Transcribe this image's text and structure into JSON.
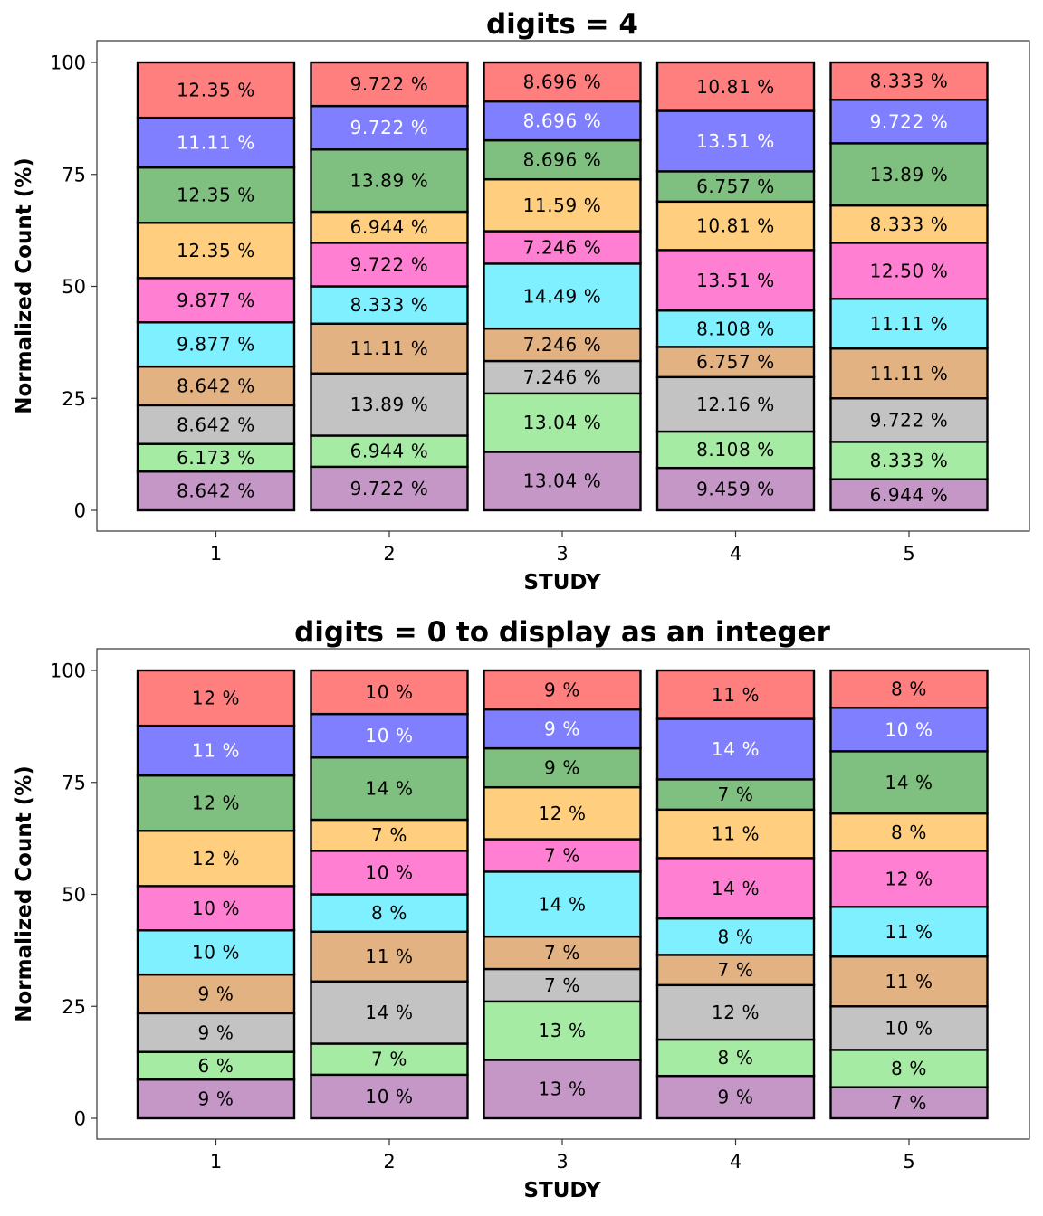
{
  "chart_data": [
    {
      "type": "bar",
      "stacked": true,
      "title": "digits = 4",
      "xlabel": "STUDY",
      "ylabel": "Normalized Count (%)",
      "categories": [
        "1",
        "2",
        "3",
        "4",
        "5"
      ],
      "ylim": [
        0,
        100
      ],
      "yticks": [
        "0",
        "25",
        "50",
        "75",
        "100"
      ],
      "grid": false,
      "series": [
        {
          "color": "#c497c6",
          "values": [
            8.642,
            9.722,
            13.04,
            9.459,
            6.944
          ],
          "labels": [
            "8.642 %",
            "9.722 %",
            "13.04 %",
            "9.459 %",
            "6.944 %"
          ]
        },
        {
          "color": "#a6eba4",
          "values": [
            6.173,
            6.944,
            13.04,
            8.108,
            8.333
          ],
          "labels": [
            "6.173 %",
            "6.944 %",
            "13.04 %",
            "8.108 %",
            "8.333 %"
          ]
        },
        {
          "color": "#c3c3c3",
          "values": [
            8.642,
            13.89,
            7.246,
            12.16,
            9.722
          ],
          "labels": [
            "8.642 %",
            "13.89 %",
            "7.246 %",
            "12.16 %",
            "9.722 %"
          ]
        },
        {
          "color": "#e3b283",
          "values": [
            8.642,
            11.11,
            7.246,
            6.757,
            11.11
          ],
          "labels": [
            "8.642 %",
            "11.11 %",
            "7.246 %",
            "6.757 %",
            "11.11 %"
          ]
        },
        {
          "color": "#7ff0ff",
          "values": [
            9.877,
            8.333,
            14.49,
            8.108,
            11.11
          ],
          "labels": [
            "9.877 %",
            "8.333 %",
            "14.49 %",
            "8.108 %",
            "11.11 %"
          ]
        },
        {
          "color": "#ff80d2",
          "values": [
            9.877,
            9.722,
            7.246,
            13.51,
            12.5
          ],
          "labels": [
            "9.877 %",
            "9.722 %",
            "7.246 %",
            "13.51 %",
            "12.50 %"
          ]
        },
        {
          "color": "#ffcf7f",
          "values": [
            12.35,
            6.944,
            11.59,
            10.81,
            8.333
          ],
          "labels": [
            "12.35 %",
            "6.944 %",
            "11.59 %",
            "10.81 %",
            "8.333 %"
          ]
        },
        {
          "color": "#7fbf7f",
          "values": [
            12.35,
            13.89,
            8.696,
            6.757,
            13.89
          ],
          "labels": [
            "12.35 %",
            "13.89 %",
            "8.696 %",
            "6.757 %",
            "13.89 %"
          ]
        },
        {
          "color": "#7f7fff",
          "label_color": "#ffffff",
          "values": [
            11.11,
            9.722,
            8.696,
            13.51,
            9.722
          ],
          "labels": [
            "11.11 %",
            "9.722 %",
            "8.696 %",
            "13.51 %",
            "9.722 %"
          ]
        },
        {
          "color": "#ff7f7f",
          "values": [
            12.35,
            9.722,
            8.696,
            10.81,
            8.333
          ],
          "labels": [
            "12.35 %",
            "9.722 %",
            "8.696 %",
            "10.81 %",
            "8.333 %"
          ]
        }
      ]
    },
    {
      "type": "bar",
      "stacked": true,
      "title": "digits = 0 to display as an integer",
      "xlabel": "STUDY",
      "ylabel": "Normalized Count (%)",
      "categories": [
        "1",
        "2",
        "3",
        "4",
        "5"
      ],
      "ylim": [
        0,
        100
      ],
      "yticks": [
        "0",
        "25",
        "50",
        "75",
        "100"
      ],
      "grid": false,
      "series": [
        {
          "color": "#c497c6",
          "values": [
            8.642,
            9.722,
            13.04,
            9.459,
            6.944
          ],
          "labels": [
            "9 %",
            "10 %",
            "13 %",
            "9 %",
            "7 %"
          ]
        },
        {
          "color": "#a6eba4",
          "values": [
            6.173,
            6.944,
            13.04,
            8.108,
            8.333
          ],
          "labels": [
            "6 %",
            "7 %",
            "13 %",
            "8 %",
            "8 %"
          ]
        },
        {
          "color": "#c3c3c3",
          "values": [
            8.642,
            13.89,
            7.246,
            12.16,
            9.722
          ],
          "labels": [
            "9 %",
            "14 %",
            "7 %",
            "12 %",
            "10 %"
          ]
        },
        {
          "color": "#e3b283",
          "values": [
            8.642,
            11.11,
            7.246,
            6.757,
            11.11
          ],
          "labels": [
            "9 %",
            "11 %",
            "7 %",
            "7 %",
            "11 %"
          ]
        },
        {
          "color": "#7ff0ff",
          "values": [
            9.877,
            8.333,
            14.49,
            8.108,
            11.11
          ],
          "labels": [
            "10 %",
            "8 %",
            "14 %",
            "8 %",
            "11 %"
          ]
        },
        {
          "color": "#ff80d2",
          "values": [
            9.877,
            9.722,
            7.246,
            13.51,
            12.5
          ],
          "labels": [
            "10 %",
            "10 %",
            "7 %",
            "14 %",
            "12 %"
          ]
        },
        {
          "color": "#ffcf7f",
          "values": [
            12.35,
            6.944,
            11.59,
            10.81,
            8.333
          ],
          "labels": [
            "12 %",
            "7 %",
            "12 %",
            "11 %",
            "8 %"
          ]
        },
        {
          "color": "#7fbf7f",
          "values": [
            12.35,
            13.89,
            8.696,
            6.757,
            13.89
          ],
          "labels": [
            "12 %",
            "14 %",
            "9 %",
            "7 %",
            "14 %"
          ]
        },
        {
          "color": "#7f7fff",
          "label_color": "#ffffff",
          "values": [
            11.11,
            9.722,
            8.696,
            13.51,
            9.722
          ],
          "labels": [
            "11 %",
            "10 %",
            "9 %",
            "14 %",
            "10 %"
          ]
        },
        {
          "color": "#ff7f7f",
          "values": [
            12.35,
            9.722,
            8.696,
            10.81,
            8.333
          ],
          "labels": [
            "12 %",
            "10 %",
            "9 %",
            "11 %",
            "8 %"
          ]
        }
      ]
    }
  ]
}
